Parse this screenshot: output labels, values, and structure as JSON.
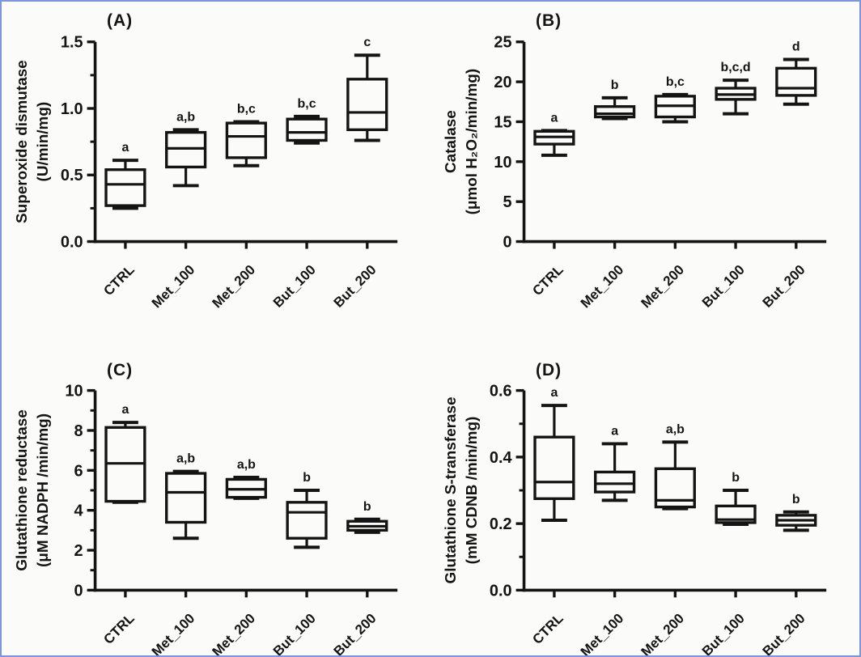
{
  "figure": {
    "background": "#fbfbfa",
    "border_color": "#7b96dd",
    "ink": "#141414"
  },
  "categories": [
    "CTRL",
    "Met_100",
    "Met_200",
    "But_100",
    "But_200"
  ],
  "chart_data": [
    {
      "type": "box",
      "panel": "(A)",
      "ylabel_line1": "Superoxide dismutase",
      "ylabel_line2": "(U/min/mg)",
      "ylim": [
        0,
        1.5
      ],
      "yticks": [
        0,
        0.5,
        1.0,
        1.5
      ],
      "ytick_labels": [
        "0.0",
        "0.5",
        "1.0",
        "1.5"
      ],
      "minor_ticks": true,
      "grid": false,
      "categories": [
        "CTRL",
        "Met_100",
        "Met_200",
        "But_100",
        "But_200"
      ],
      "boxes": [
        {
          "label": "CTRL",
          "low": 0.25,
          "q1": 0.27,
          "median": 0.43,
          "q3": 0.54,
          "high": 0.61,
          "sig": "a"
        },
        {
          "label": "Met_100",
          "low": 0.42,
          "q1": 0.56,
          "median": 0.7,
          "q3": 0.82,
          "high": 0.84,
          "sig": "a,b"
        },
        {
          "label": "Met_200",
          "low": 0.57,
          "q1": 0.63,
          "median": 0.79,
          "q3": 0.89,
          "high": 0.9,
          "sig": "b,c"
        },
        {
          "label": "But_100",
          "low": 0.74,
          "q1": 0.76,
          "median": 0.82,
          "q3": 0.92,
          "high": 0.94,
          "sig": "b,c"
        },
        {
          "label": "But_200",
          "low": 0.76,
          "q1": 0.84,
          "median": 0.97,
          "q3": 1.22,
          "high": 1.4,
          "sig": "c"
        }
      ]
    },
    {
      "type": "box",
      "panel": "(B)",
      "ylabel_line1": "Catalase",
      "ylabel_line2": "(μmol H₂O₂/min/mg)",
      "ylim": [
        0,
        25
      ],
      "yticks": [
        0,
        5,
        10,
        15,
        20,
        25
      ],
      "ytick_labels": [
        "0",
        "5",
        "10",
        "15",
        "20",
        "25"
      ],
      "minor_ticks": false,
      "grid": false,
      "categories": [
        "CTRL",
        "Met_100",
        "Met_200",
        "But_100",
        "But_200"
      ],
      "boxes": [
        {
          "label": "CTRL",
          "low": 10.8,
          "q1": 12.2,
          "median": 13.1,
          "q3": 13.8,
          "high": 13.9,
          "sig": "a"
        },
        {
          "label": "Met_100",
          "low": 15.4,
          "q1": 15.6,
          "median": 16.0,
          "q3": 16.9,
          "high": 18.0,
          "sig": "b"
        },
        {
          "label": "Met_200",
          "low": 15.0,
          "q1": 15.6,
          "median": 17.0,
          "q3": 18.2,
          "high": 18.4,
          "sig": "b,c"
        },
        {
          "label": "But_100",
          "low": 16.0,
          "q1": 17.8,
          "median": 18.4,
          "q3": 19.2,
          "high": 20.2,
          "sig": "b,c,d"
        },
        {
          "label": "But_200",
          "low": 17.2,
          "q1": 18.3,
          "median": 19.2,
          "q3": 21.7,
          "high": 22.8,
          "sig": "d"
        }
      ]
    },
    {
      "type": "box",
      "panel": "(C)",
      "ylabel_line1": "Glutathione reductase",
      "ylabel_line2": "(μM NADPH /min/mg)",
      "ylim": [
        0,
        10
      ],
      "yticks": [
        0,
        2,
        4,
        6,
        8,
        10
      ],
      "ytick_labels": [
        "0",
        "2",
        "4",
        "6",
        "8",
        "10"
      ],
      "minor_ticks": true,
      "grid": false,
      "categories": [
        "CTRL",
        "Met_100",
        "Met_200",
        "But_100",
        "But_200"
      ],
      "boxes": [
        {
          "label": "CTRL",
          "low": 4.4,
          "q1": 4.45,
          "median": 6.35,
          "q3": 8.15,
          "high": 8.4,
          "sig": "a"
        },
        {
          "label": "Met_100",
          "low": 2.6,
          "q1": 3.4,
          "median": 4.9,
          "q3": 5.85,
          "high": 5.95,
          "sig": "a,b"
        },
        {
          "label": "Met_200",
          "low": 4.6,
          "q1": 4.65,
          "median": 5.05,
          "q3": 5.55,
          "high": 5.65,
          "sig": "a,b"
        },
        {
          "label": "But_100",
          "low": 2.15,
          "q1": 2.6,
          "median": 3.9,
          "q3": 4.4,
          "high": 5.0,
          "sig": "b"
        },
        {
          "label": "But_200",
          "low": 2.9,
          "q1": 3.0,
          "median": 3.2,
          "q3": 3.45,
          "high": 3.55,
          "sig": "b"
        }
      ]
    },
    {
      "type": "box",
      "panel": "(D)",
      "ylabel_line1": "Glutathione S-transferase",
      "ylabel_line2": "(mM CDNB /min/mg)",
      "ylim": [
        0,
        0.6
      ],
      "yticks": [
        0,
        0.2,
        0.4,
        0.6
      ],
      "ytick_labels": [
        "0.0",
        "0.2",
        "0.4",
        "0.6"
      ],
      "minor_ticks": true,
      "grid": false,
      "categories": [
        "CTRL",
        "Met_100",
        "Met_200",
        "But_100",
        "But_200"
      ],
      "boxes": [
        {
          "label": "CTRL",
          "low": 0.21,
          "q1": 0.275,
          "median": 0.325,
          "q3": 0.46,
          "high": 0.555,
          "sig": "a"
        },
        {
          "label": "Met_100",
          "low": 0.27,
          "q1": 0.295,
          "median": 0.32,
          "q3": 0.355,
          "high": 0.44,
          "sig": "a"
        },
        {
          "label": "Met_200",
          "low": 0.245,
          "q1": 0.25,
          "median": 0.27,
          "q3": 0.365,
          "high": 0.445,
          "sig": "a,b"
        },
        {
          "label": "But_100",
          "low": 0.198,
          "q1": 0.203,
          "median": 0.212,
          "q3": 0.253,
          "high": 0.3,
          "sig": "b"
        },
        {
          "label": "But_200",
          "low": 0.18,
          "q1": 0.195,
          "median": 0.21,
          "q3": 0.225,
          "high": 0.235,
          "sig": "b"
        }
      ]
    }
  ]
}
